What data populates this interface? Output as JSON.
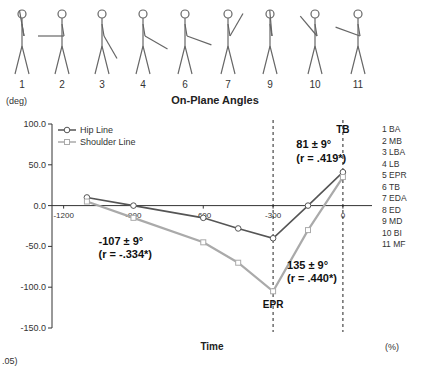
{
  "chart_data": {
    "type": "line",
    "title": "On-Plane Angles",
    "y_label": "(deg)",
    "x_label": "Time",
    "x_unit": "(%)",
    "footnote": ".05)",
    "figures": [
      "1",
      "2",
      "3",
      "4",
      "6",
      "7",
      "9",
      "10",
      "11"
    ],
    "phases": [
      "1 BA",
      "2 MB",
      "3 LBA",
      "4 LB",
      "5 EPR",
      "6 TB",
      "7 EDA",
      "8 ED",
      "9 MD",
      "10 BI",
      "11 MF"
    ],
    "x": [
      -1100,
      -900,
      -600,
      -450,
      -300,
      -150,
      0
    ],
    "series": [
      {
        "name": "Hip Line",
        "color": "#555555",
        "marker": "circle",
        "values": [
          10,
          0,
          -15,
          -28,
          -40,
          0,
          41
        ]
      },
      {
        "name": "Shoulder Line",
        "color": "#aaaaaa",
        "marker": "square",
        "values": [
          5,
          -15,
          -45,
          -70,
          -105,
          -30,
          35
        ]
      }
    ],
    "xlim": [
      -1250,
      125
    ],
    "xticks": [
      -1200,
      -900,
      -600,
      -300,
      0
    ],
    "ylim": [
      -150,
      100
    ],
    "yticks": [
      {
        "value": 100,
        "label": "100.0"
      },
      {
        "value": 50,
        "label": "50.0"
      },
      {
        "value": 0,
        "label": "0.0"
      },
      {
        "value": -50,
        "label": "-50.0"
      },
      {
        "value": -100,
        "label": "-100.0"
      },
      {
        "value": -150,
        "label": "-150.0"
      }
    ],
    "vlines": [
      {
        "label": "EPR",
        "x": -300
      },
      {
        "label": "TB",
        "x": 0
      }
    ],
    "annotations": [
      {
        "text": "81 ± 9°",
        "x": -200,
        "y": 70
      },
      {
        "text": "(r = .419*)",
        "x": -200,
        "y": 54
      },
      {
        "text": "-107 ± 9°",
        "x": -1050,
        "y": -48
      },
      {
        "text": "(r = -.334*)",
        "x": -1050,
        "y": -64
      },
      {
        "text": "135 ± 9°",
        "x": -240,
        "y": -78
      },
      {
        "text": "(r = .440*)",
        "x": -240,
        "y": -94
      }
    ],
    "legend": "upper left",
    "grid": false
  }
}
